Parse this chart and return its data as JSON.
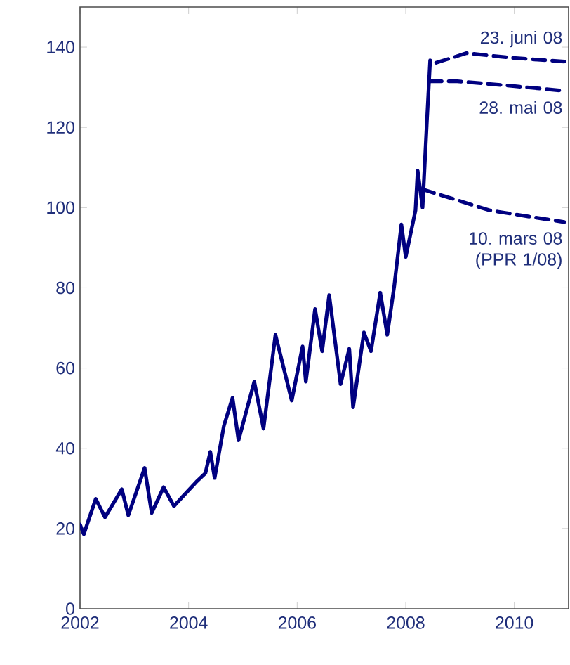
{
  "chart_data": {
    "type": "line",
    "xlim": [
      2002,
      2011
    ],
    "ylim": [
      0,
      150
    ],
    "xticks": [
      2002,
      2004,
      2006,
      2008,
      2010
    ],
    "yticks": [
      0,
      20,
      40,
      60,
      80,
      100,
      120,
      140
    ],
    "grid": false,
    "legend": false,
    "marker": "none",
    "series": [
      {
        "color": "#000080",
        "line_style": "solid",
        "x": [
          2002.0,
          2002.07,
          2002.29,
          2002.46,
          2002.77,
          2002.89,
          2003.19,
          2003.32,
          2003.54,
          2003.73,
          2004.14,
          2004.31,
          2004.4,
          2004.48,
          2004.65,
          2004.81,
          2004.92,
          2005.21,
          2005.38,
          2005.6,
          2005.9,
          2006.1,
          2006.16,
          2006.33,
          2006.46,
          2006.59,
          2006.8,
          2006.96,
          2007.03,
          2007.23,
          2007.36,
          2007.53,
          2007.66,
          2007.79,
          2007.92,
          2008.0,
          2008.18,
          2008.22,
          2008.31,
          2008.39,
          2008.45
        ],
        "values": [
          21,
          18.6,
          27.4,
          22.8,
          29.8,
          23.3,
          35.1,
          23.9,
          30.3,
          25.6,
          31.6,
          33.8,
          39.1,
          32.6,
          45.6,
          52.6,
          42,
          56.6,
          44.9,
          68.3,
          51.9,
          65.4,
          56.6,
          74.7,
          64.2,
          78.2,
          56,
          64.8,
          50.2,
          68.9,
          64.2,
          78.8,
          68.3,
          80.6,
          95.8,
          87.7,
          99.3,
          109.2,
          100,
          121.5,
          136.7
        ]
      },
      {
        "name": "23. juni 08",
        "color": "#000080",
        "line_style": "dashed",
        "x": [
          2008.56,
          2009.12,
          2009.98,
          2010.92
        ],
        "values": [
          136.1,
          138.5,
          137.3,
          136.4
        ]
      },
      {
        "name": "28. mai 08",
        "color": "#000080",
        "line_style": "dashed",
        "x": [
          2008.43,
          2008.95,
          2009.98,
          2010.92
        ],
        "values": [
          131.5,
          131.5,
          130.3,
          129.1
        ]
      },
      {
        "name": "10. mars 08 (PPR 1/08)",
        "color": "#000080",
        "line_style": "dashed",
        "x": [
          2008.3,
          2009.55,
          2010.92
        ],
        "values": [
          104.6,
          99.3,
          96.4
        ]
      }
    ]
  }
}
